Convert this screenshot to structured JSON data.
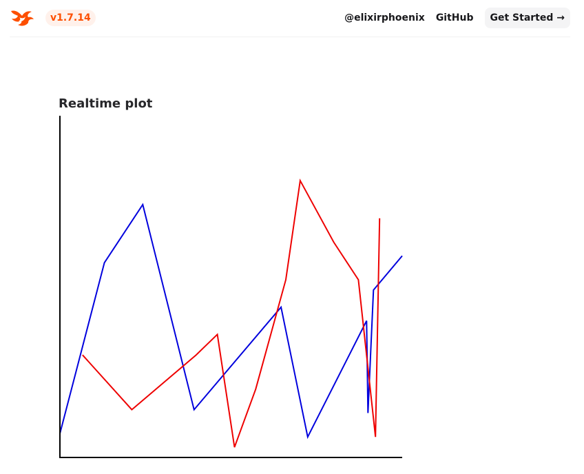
{
  "header": {
    "version": "v1.7.14",
    "links": [
      "@elixirphoenix",
      "GitHub"
    ],
    "cta": "Get Started →",
    "logo_icon": "phoenix-flame-icon",
    "accent": "#fd4f00"
  },
  "chart_data": {
    "type": "line",
    "title": "Realtime plot",
    "xlabel": "",
    "ylabel": "",
    "grid": false,
    "legend": "none",
    "xlim": [
      0,
      100
    ],
    "ylim": [
      0,
      100
    ],
    "series": [
      {
        "color": "#0000dd",
        "points": [
          [
            0,
            7
          ],
          [
            13,
            57
          ],
          [
            24.2,
            74
          ],
          [
            39.2,
            14
          ],
          [
            64.6,
            44
          ],
          [
            72.4,
            6
          ],
          [
            89.6,
            40
          ],
          [
            90,
            13
          ],
          [
            91.6,
            49
          ],
          [
            100,
            59
          ]
        ]
      },
      {
        "color": "#ee0000",
        "points": [
          [
            6.6,
            30
          ],
          [
            21,
            14
          ],
          [
            39.8,
            30
          ],
          [
            46,
            36
          ],
          [
            51,
            3
          ],
          [
            57.2,
            20
          ],
          [
            66,
            52
          ],
          [
            70.2,
            81
          ],
          [
            80,
            63
          ],
          [
            87.2,
            52
          ],
          [
            92.2,
            6
          ],
          [
            93.4,
            70
          ]
        ]
      }
    ]
  }
}
